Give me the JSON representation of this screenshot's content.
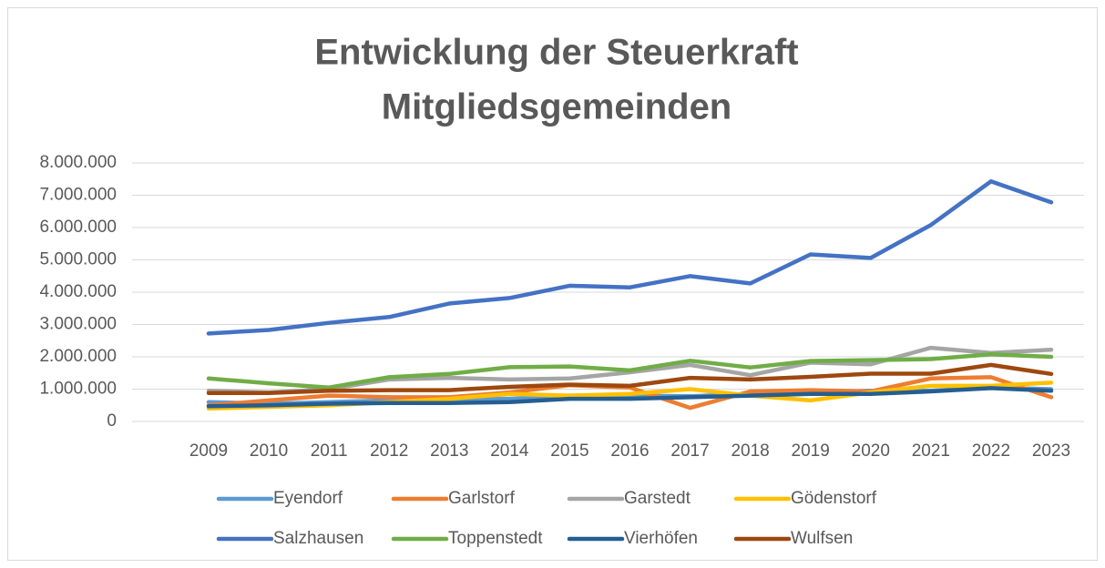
{
  "chart_data": {
    "type": "line",
    "title": [
      "Entwicklung der Steuerkraft",
      "Mitgliedsgemeinden"
    ],
    "categories": [
      "2009",
      "2010",
      "2011",
      "2012",
      "2013",
      "2014",
      "2015",
      "2016",
      "2017",
      "2018",
      "2019",
      "2020",
      "2021",
      "2022",
      "2023"
    ],
    "series": [
      {
        "name": "Eyendorf",
        "color": "#5b9bd5",
        "values": [
          600000,
          550000,
          600000,
          650000,
          700000,
          700000,
          800000,
          800000,
          780000,
          850000,
          900000,
          950000,
          950000,
          1050000,
          1000000
        ]
      },
      {
        "name": "Garlstorf",
        "color": "#ed7d31",
        "values": [
          500000,
          650000,
          800000,
          750000,
          750000,
          900000,
          1120000,
          1050000,
          420000,
          930000,
          970000,
          930000,
          1330000,
          1370000,
          750000
        ]
      },
      {
        "name": "Garstedt",
        "color": "#a5a5a5",
        "values": [
          950000,
          900000,
          1000000,
          1300000,
          1350000,
          1300000,
          1330000,
          1520000,
          1750000,
          1430000,
          1820000,
          1770000,
          2280000,
          2120000,
          2220000
        ]
      },
      {
        "name": "Gödenstorf",
        "color": "#ffc000",
        "values": [
          400000,
          450000,
          500000,
          600000,
          700000,
          850000,
          800000,
          850000,
          1000000,
          800000,
          650000,
          900000,
          1100000,
          1100000,
          1200000
        ]
      },
      {
        "name": "Salzhausen",
        "color": "#4472c4",
        "values": [
          2720000,
          2830000,
          3050000,
          3230000,
          3650000,
          3820000,
          4200000,
          4150000,
          4500000,
          4270000,
          5170000,
          5060000,
          6080000,
          7430000,
          6780000
        ]
      },
      {
        "name": "Toppenstedt",
        "color": "#70ad47",
        "values": [
          1330000,
          1180000,
          1050000,
          1370000,
          1470000,
          1680000,
          1700000,
          1580000,
          1880000,
          1670000,
          1870000,
          1900000,
          1930000,
          2080000,
          2000000
        ]
      },
      {
        "name": "Vierhöfen",
        "color": "#255e91",
        "values": [
          470000,
          500000,
          550000,
          570000,
          570000,
          600000,
          700000,
          700000,
          750000,
          800000,
          850000,
          850000,
          930000,
          1030000,
          950000
        ]
      },
      {
        "name": "Wulfsen",
        "color": "#9e480e",
        "values": [
          880000,
          880000,
          950000,
          970000,
          970000,
          1070000,
          1140000,
          1100000,
          1350000,
          1300000,
          1380000,
          1480000,
          1480000,
          1750000,
          1470000
        ]
      }
    ],
    "ylim": [
      0,
      8000000
    ],
    "yticks": [
      0,
      {
        "value": 1000000,
        "label": "1.000.000"
      },
      {
        "value": 2000000,
        "label": "2.000.000"
      },
      {
        "value": 3000000,
        "label": "3.000.000"
      },
      {
        "value": 4000000,
        "label": "4.000.000"
      },
      {
        "value": 5000000,
        "label": "5.000.000"
      },
      {
        "value": 6000000,
        "label": "6.000.000"
      },
      {
        "value": 7000000,
        "label": "7.000.000"
      },
      {
        "value": 8000000,
        "label": "8.000.000"
      }
    ],
    "grid": true,
    "legend": "bottom"
  }
}
